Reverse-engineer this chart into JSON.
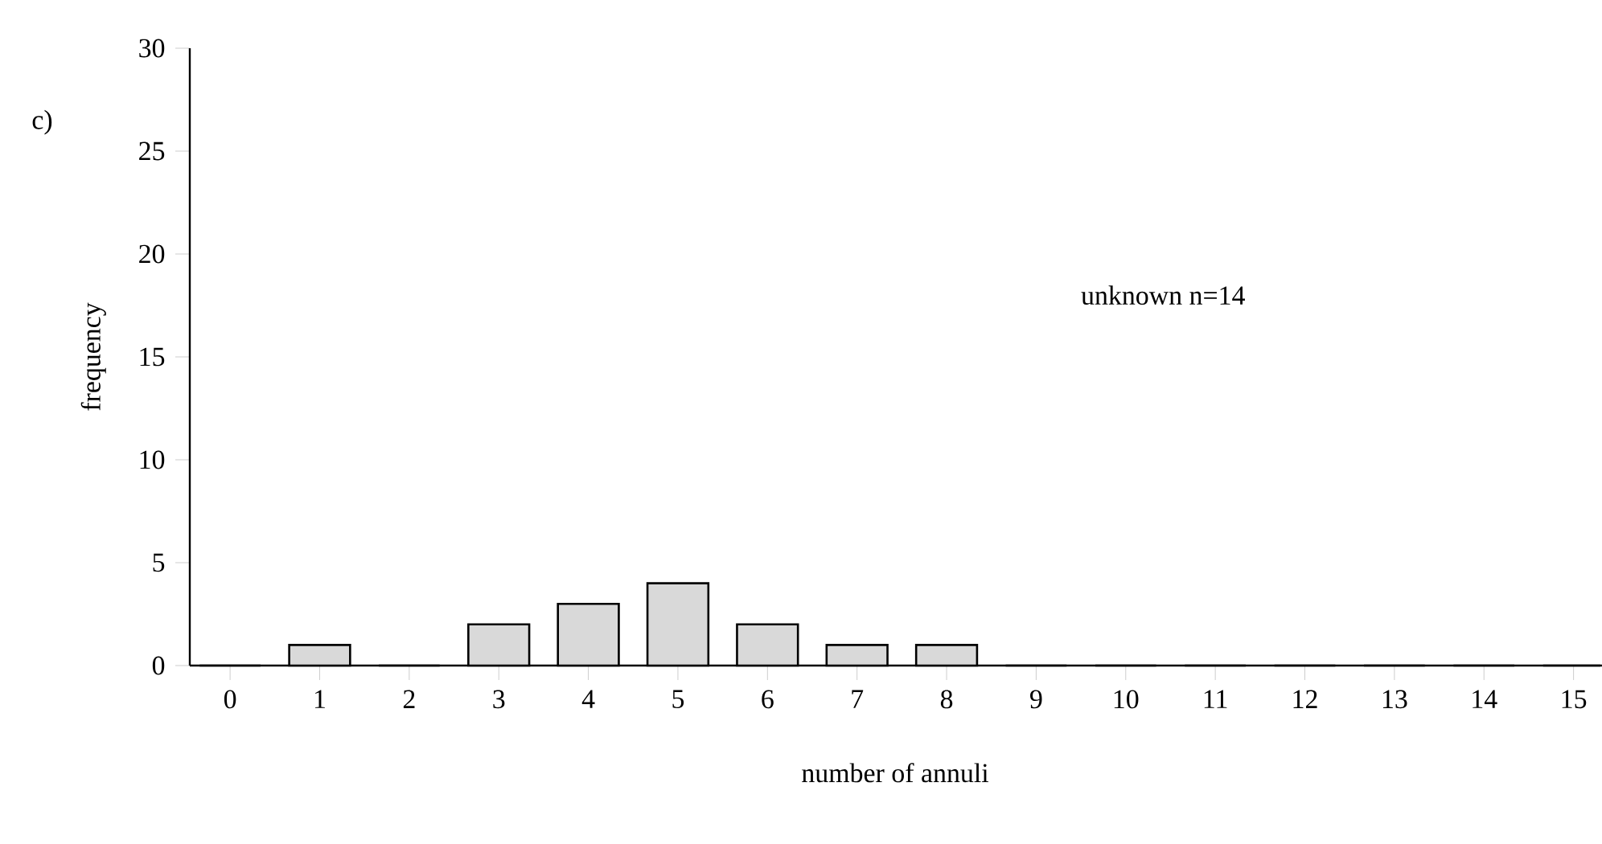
{
  "chart_data": {
    "type": "bar",
    "xlabel": "number of annuli",
    "ylabel": "frequency",
    "annotations": [
      "c)",
      "unknown n=14"
    ],
    "categories": [
      "0",
      "1",
      "2",
      "3",
      "4",
      "5",
      "6",
      "7",
      "8",
      "9",
      "10",
      "11",
      "12",
      "13",
      "14",
      "15"
    ],
    "values": [
      0,
      1,
      0,
      2,
      3,
      4,
      2,
      1,
      1,
      0,
      0,
      0,
      0,
      0,
      0,
      0
    ],
    "color": "#d9d9d9",
    "ylim": [
      0,
      30
    ],
    "yticks": [
      0,
      5,
      10,
      15,
      20,
      25,
      30
    ],
    "grid": false
  }
}
